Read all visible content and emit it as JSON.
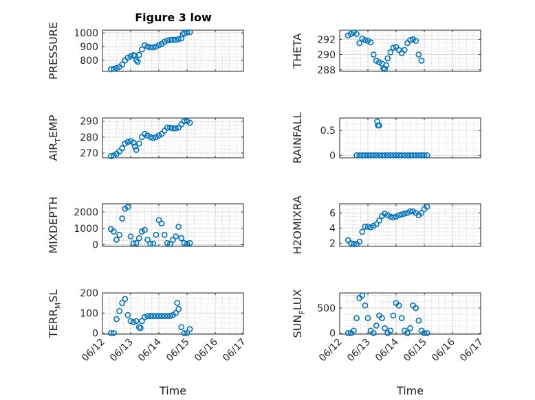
{
  "figure": {
    "title": "Figure 3 low"
  },
  "colors": {
    "marker": "#0072BD",
    "axis": "#262626",
    "grid": "#bdbdbd"
  },
  "chart_data": [
    {
      "type": "scatter",
      "ylabel": "PRESSURE",
      "ylabel_sub": "",
      "ylabel_post": "",
      "xlabel": "",
      "ylim": [
        720,
        1020
      ],
      "yticks": [
        800,
        900,
        1000
      ],
      "grid": "on",
      "show_xticks": false,
      "points": [
        [
          0.3,
          735
        ],
        [
          0.4,
          738
        ],
        [
          0.5,
          745
        ],
        [
          0.6,
          752
        ],
        [
          0.7,
          770
        ],
        [
          0.8,
          800
        ],
        [
          0.9,
          820
        ],
        [
          1.0,
          830
        ],
        [
          1.1,
          838
        ],
        [
          1.15,
          835
        ],
        [
          1.2,
          800
        ],
        [
          1.25,
          790
        ],
        [
          1.3,
          840
        ],
        [
          1.4,
          880
        ],
        [
          1.5,
          910
        ],
        [
          1.6,
          900
        ],
        [
          1.7,
          895
        ],
        [
          1.8,
          895
        ],
        [
          1.9,
          900
        ],
        [
          2.0,
          910
        ],
        [
          2.1,
          920
        ],
        [
          2.2,
          935
        ],
        [
          2.3,
          945
        ],
        [
          2.4,
          948
        ],
        [
          2.5,
          950
        ],
        [
          2.6,
          950
        ],
        [
          2.7,
          955
        ],
        [
          2.8,
          960
        ],
        [
          2.85,
          990
        ],
        [
          2.9,
          1000
        ],
        [
          3.0,
          1003
        ],
        [
          3.1,
          1005
        ]
      ]
    },
    {
      "type": "scatter",
      "ylabel": "THETA",
      "ylabel_sub": "",
      "ylabel_post": "",
      "xlabel": "",
      "ylim": [
        287.8,
        293.2
      ],
      "yticks": [
        288,
        290,
        292
      ],
      "grid": "on",
      "show_xticks": false,
      "points": [
        [
          0.3,
          292.5
        ],
        [
          0.4,
          292.7
        ],
        [
          0.5,
          292.9
        ],
        [
          0.6,
          292.7
        ],
        [
          0.7,
          291.5
        ],
        [
          0.8,
          292.1
        ],
        [
          0.9,
          291.9
        ],
        [
          1.0,
          291.8
        ],
        [
          1.1,
          291.6
        ],
        [
          1.2,
          290.0
        ],
        [
          1.3,
          289.2
        ],
        [
          1.4,
          289.0
        ],
        [
          1.5,
          288.8
        ],
        [
          1.55,
          288.2
        ],
        [
          1.6,
          288.1
        ],
        [
          1.65,
          288.6
        ],
        [
          1.7,
          289.5
        ],
        [
          1.8,
          290.3
        ],
        [
          1.9,
          290.9
        ],
        [
          2.0,
          291.0
        ],
        [
          2.1,
          290.6
        ],
        [
          2.2,
          290.2
        ],
        [
          2.3,
          290.6
        ],
        [
          2.4,
          291.5
        ],
        [
          2.5,
          291.9
        ],
        [
          2.6,
          292.0
        ],
        [
          2.7,
          291.8
        ],
        [
          2.8,
          290.0
        ],
        [
          2.9,
          289.2
        ]
      ]
    },
    {
      "type": "scatter",
      "ylabel": "AIR",
      "ylabel_sub": "T",
      "ylabel_post": "EMP",
      "xlabel": "",
      "ylim": [
        267,
        292
      ],
      "yticks": [
        270,
        280,
        290
      ],
      "grid": "on",
      "show_xticks": false,
      "points": [
        [
          0.3,
          268
        ],
        [
          0.4,
          268.5
        ],
        [
          0.5,
          269.5
        ],
        [
          0.6,
          271
        ],
        [
          0.7,
          273
        ],
        [
          0.8,
          276
        ],
        [
          0.9,
          277
        ],
        [
          1.0,
          277.5
        ],
        [
          1.1,
          276.5
        ],
        [
          1.15,
          274
        ],
        [
          1.2,
          272
        ],
        [
          1.3,
          276
        ],
        [
          1.4,
          280
        ],
        [
          1.5,
          282
        ],
        [
          1.6,
          281
        ],
        [
          1.7,
          280
        ],
        [
          1.8,
          279.5
        ],
        [
          1.9,
          280
        ],
        [
          2.0,
          281
        ],
        [
          2.1,
          282
        ],
        [
          2.2,
          284
        ],
        [
          2.3,
          286
        ],
        [
          2.4,
          286
        ],
        [
          2.5,
          285.5
        ],
        [
          2.6,
          285.5
        ],
        [
          2.7,
          286
        ],
        [
          2.8,
          288
        ],
        [
          2.9,
          290
        ],
        [
          3.0,
          290
        ],
        [
          3.1,
          289
        ]
      ]
    },
    {
      "type": "scatter",
      "ylabel": "RAINFALL",
      "ylabel_sub": "",
      "ylabel_post": "",
      "xlabel": "",
      "ylim": [
        -0.05,
        0.75
      ],
      "yticks": [
        0,
        0.5
      ],
      "grid": "on",
      "show_xticks": false,
      "points": [
        [
          0.6,
          0
        ],
        [
          0.7,
          0
        ],
        [
          0.8,
          0
        ],
        [
          0.9,
          0
        ],
        [
          1.0,
          0
        ],
        [
          1.1,
          0
        ],
        [
          1.2,
          0
        ],
        [
          1.3,
          0
        ],
        [
          1.4,
          0
        ],
        [
          1.5,
          0
        ],
        [
          1.6,
          0
        ],
        [
          1.7,
          0
        ],
        [
          1.8,
          0
        ],
        [
          1.9,
          0
        ],
        [
          2.0,
          0
        ],
        [
          2.1,
          0
        ],
        [
          2.2,
          0
        ],
        [
          2.3,
          0
        ],
        [
          2.4,
          0
        ],
        [
          2.5,
          0
        ],
        [
          2.6,
          0
        ],
        [
          2.7,
          0
        ],
        [
          2.8,
          0
        ],
        [
          2.9,
          0
        ],
        [
          3.0,
          0
        ],
        [
          3.1,
          0
        ],
        [
          1.33,
          0.68
        ],
        [
          1.36,
          0.6
        ],
        [
          1.4,
          0.6
        ]
      ]
    },
    {
      "type": "scatter",
      "ylabel": "MIXDEPTH",
      "ylabel_sub": "",
      "ylabel_post": "",
      "xlabel": "",
      "ylim": [
        -100,
        2500
      ],
      "yticks": [
        0,
        1000,
        2000
      ],
      "grid": "on",
      "show_xticks": false,
      "points": [
        [
          0.3,
          950
        ],
        [
          0.4,
          800
        ],
        [
          0.5,
          300
        ],
        [
          0.6,
          600
        ],
        [
          0.7,
          1600
        ],
        [
          0.8,
          2200
        ],
        [
          0.9,
          2300
        ],
        [
          1.0,
          500
        ],
        [
          1.1,
          80
        ],
        [
          1.2,
          100
        ],
        [
          1.3,
          400
        ],
        [
          1.4,
          800
        ],
        [
          1.5,
          900
        ],
        [
          1.6,
          300
        ],
        [
          1.7,
          50
        ],
        [
          1.8,
          60
        ],
        [
          1.9,
          600
        ],
        [
          2.0,
          1500
        ],
        [
          2.1,
          1300
        ],
        [
          2.2,
          600
        ],
        [
          2.3,
          100
        ],
        [
          2.4,
          50
        ],
        [
          2.5,
          300
        ],
        [
          2.6,
          500
        ],
        [
          2.7,
          1100
        ],
        [
          2.8,
          400
        ],
        [
          2.9,
          100
        ],
        [
          3.0,
          50
        ],
        [
          3.1,
          100
        ]
      ]
    },
    {
      "type": "scatter",
      "ylabel": "H2OMIXRA",
      "ylabel_sub": "",
      "ylabel_post": "",
      "xlabel": "",
      "ylim": [
        1.6,
        7.2
      ],
      "yticks": [
        2,
        4,
        6
      ],
      "grid": "on",
      "show_xticks": false,
      "points": [
        [
          0.3,
          2.4
        ],
        [
          0.4,
          2.0
        ],
        [
          0.5,
          1.9
        ],
        [
          0.6,
          1.9
        ],
        [
          0.7,
          2.2
        ],
        [
          0.8,
          3.5
        ],
        [
          0.9,
          4.2
        ],
        [
          1.0,
          4.2
        ],
        [
          1.1,
          4.1
        ],
        [
          1.2,
          4.3
        ],
        [
          1.3,
          4.5
        ],
        [
          1.4,
          5.0
        ],
        [
          1.5,
          5.6
        ],
        [
          1.6,
          5.9
        ],
        [
          1.7,
          5.7
        ],
        [
          1.8,
          5.5
        ],
        [
          1.9,
          5.4
        ],
        [
          2.0,
          5.5
        ],
        [
          2.1,
          5.7
        ],
        [
          2.2,
          5.8
        ],
        [
          2.3,
          5.9
        ],
        [
          2.4,
          6.0
        ],
        [
          2.5,
          6.2
        ],
        [
          2.6,
          6.2
        ],
        [
          2.7,
          6.0
        ],
        [
          2.8,
          5.7
        ],
        [
          2.9,
          6.0
        ],
        [
          3.0,
          6.5
        ],
        [
          3.1,
          6.8
        ]
      ]
    },
    {
      "type": "scatter",
      "ylabel": "TERR",
      "ylabel_sub": "M",
      "ylabel_post": "SL",
      "xlabel": "Time",
      "ylim": [
        -5,
        200
      ],
      "yticks": [
        0,
        100,
        200
      ],
      "grid": "on",
      "show_xticks": true,
      "points": [
        [
          0.3,
          0
        ],
        [
          0.4,
          0
        ],
        [
          0.5,
          70
        ],
        [
          0.6,
          110
        ],
        [
          0.7,
          150
        ],
        [
          0.8,
          170
        ],
        [
          0.9,
          90
        ],
        [
          1.0,
          60
        ],
        [
          1.1,
          55
        ],
        [
          1.2,
          60
        ],
        [
          1.3,
          30
        ],
        [
          1.35,
          25
        ],
        [
          1.4,
          60
        ],
        [
          1.5,
          80
        ],
        [
          1.6,
          85
        ],
        [
          1.7,
          85
        ],
        [
          1.8,
          85
        ],
        [
          1.9,
          85
        ],
        [
          2.0,
          85
        ],
        [
          2.1,
          85
        ],
        [
          2.2,
          85
        ],
        [
          2.3,
          85
        ],
        [
          2.4,
          85
        ],
        [
          2.5,
          90
        ],
        [
          2.6,
          100
        ],
        [
          2.65,
          150
        ],
        [
          2.7,
          120
        ],
        [
          2.8,
          30
        ],
        [
          2.9,
          0
        ],
        [
          3.0,
          0
        ],
        [
          3.1,
          20
        ]
      ]
    },
    {
      "type": "scatter",
      "ylabel": "SUN",
      "ylabel_sub": "F",
      "ylabel_post": "LUX",
      "xlabel": "Time",
      "ylim": [
        -20,
        800
      ],
      "yticks": [
        0,
        500
      ],
      "grid": "on",
      "show_xticks": true,
      "points": [
        [
          0.3,
          0
        ],
        [
          0.4,
          0
        ],
        [
          0.5,
          50
        ],
        [
          0.6,
          300
        ],
        [
          0.7,
          700
        ],
        [
          0.8,
          750
        ],
        [
          0.9,
          550
        ],
        [
          1.0,
          300
        ],
        [
          1.1,
          50
        ],
        [
          1.2,
          0
        ],
        [
          1.3,
          150
        ],
        [
          1.4,
          350
        ],
        [
          1.5,
          300
        ],
        [
          1.6,
          100
        ],
        [
          1.7,
          0
        ],
        [
          1.8,
          50
        ],
        [
          1.9,
          350
        ],
        [
          2.0,
          600
        ],
        [
          2.1,
          550
        ],
        [
          2.2,
          300
        ],
        [
          2.3,
          50
        ],
        [
          2.4,
          0
        ],
        [
          2.5,
          100
        ],
        [
          2.6,
          550
        ],
        [
          2.7,
          500
        ],
        [
          2.8,
          250
        ],
        [
          2.9,
          50
        ],
        [
          3.0,
          0
        ],
        [
          3.1,
          0
        ]
      ]
    }
  ],
  "x_axis": {
    "range": [
      0,
      5
    ],
    "tick_values": [
      0,
      1,
      2,
      3,
      4,
      5
    ],
    "tick_labels": [
      "06/12",
      "06/13",
      "06/14",
      "06/15",
      "06/16",
      "06/17"
    ]
  }
}
